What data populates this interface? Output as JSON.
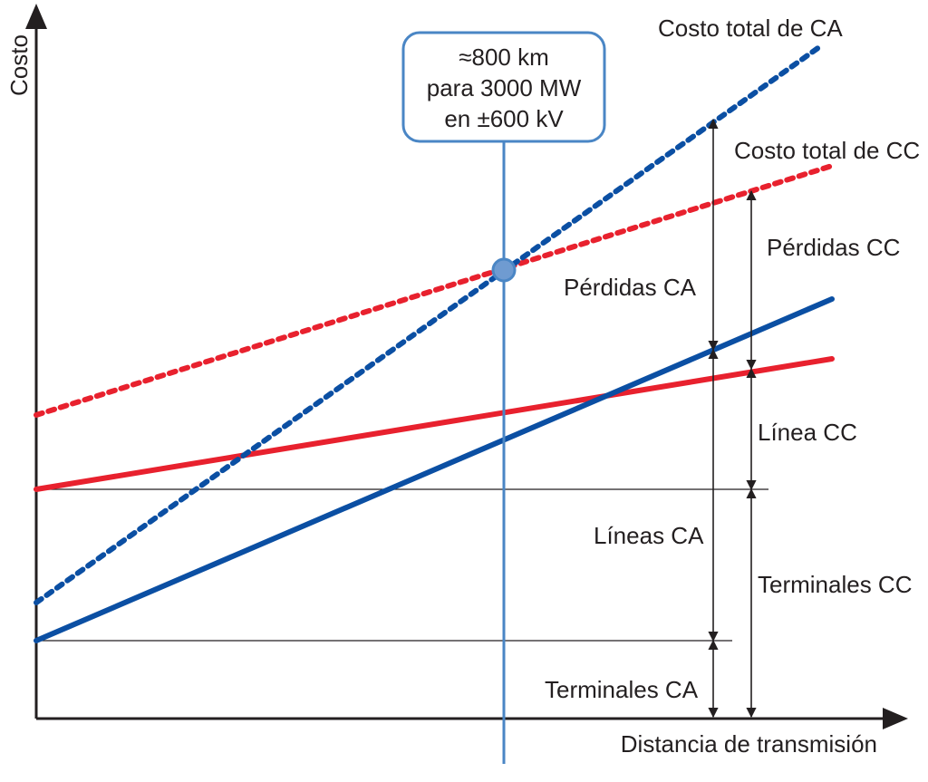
{
  "axes": {
    "y_label": "Costo",
    "x_label": "Distancia de transmisión"
  },
  "callout": {
    "line1": "≈800 km",
    "line2": "para 3000 MW",
    "line3": "en ±600 kV"
  },
  "curves": {
    "ac_total": "Costo total de CA",
    "dc_total": "Costo total de CC"
  },
  "brackets": {
    "ac_losses": "Pérdidas CA",
    "dc_losses": "Pérdidas CC",
    "dc_line": "Línea CC",
    "ac_lines": "Líneas CA",
    "dc_terminals": "Terminales CC",
    "ac_terminals": "Terminales CA"
  },
  "colors": {
    "ac": "#0b4fa3",
    "dc": "#e8212e",
    "callout": "#4a86c5",
    "marker": "#6f9bd1",
    "axis": "#231f20"
  },
  "chart_data": {
    "type": "line",
    "xlabel": "Distancia de transmisión",
    "ylabel": "Costo",
    "title": "",
    "series": [
      {
        "name": "Costo total de CA",
        "style": "dotted",
        "color": "#0b4fa3"
      },
      {
        "name": "Costo total de CC",
        "style": "dotted",
        "color": "#e8212e"
      }
    ],
    "annotations": [
      "≈800 km para 3000 MW en ±600 kV"
    ]
  }
}
